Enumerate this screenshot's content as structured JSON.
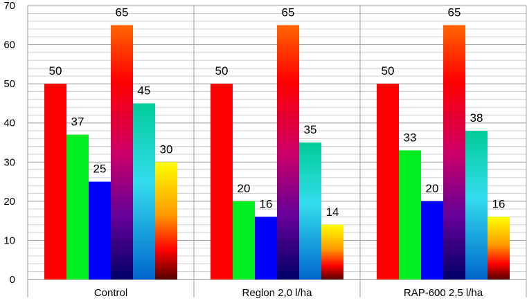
{
  "chart_data": {
    "type": "bar",
    "title": "",
    "xlabel": "",
    "ylabel": "",
    "ylim": [
      0,
      70
    ],
    "yticks": [
      0,
      10,
      20,
      30,
      40,
      50,
      60,
      70
    ],
    "grid": "horizontal-minor-and-major",
    "legend": "none",
    "categories": [
      "Control",
      "Reglon 2,0 l/ha",
      "RAP-600 2,5 l/ha"
    ],
    "series": [
      {
        "values": [
          50,
          50,
          50
        ],
        "fill": "red-solid",
        "color": "#ff0000"
      },
      {
        "values": [
          37,
          20,
          33
        ],
        "fill": "green-solid",
        "color": "#00ee22"
      },
      {
        "values": [
          25,
          16,
          20
        ],
        "fill": "blue-solid",
        "color": "#0000ff"
      },
      {
        "values": [
          65,
          65,
          65
        ],
        "fill": "orange-red-purple-navy-gradient",
        "color": "#cc0066"
      },
      {
        "values": [
          45,
          35,
          38
        ],
        "fill": "teal-cyan-blue-gradient",
        "color": "#22ccdd"
      },
      {
        "values": [
          30,
          14,
          16
        ],
        "fill": "yellow-red-maroon-gradient",
        "color": "#ffaa00"
      }
    ],
    "data_labels": [
      [
        "50",
        "50",
        "50"
      ],
      [
        "37",
        "20",
        "33"
      ],
      [
        "25",
        "16",
        "20"
      ],
      [
        "65",
        "65",
        "65"
      ],
      [
        "45",
        "35",
        "38"
      ],
      [
        "30",
        "14",
        "16"
      ]
    ]
  }
}
